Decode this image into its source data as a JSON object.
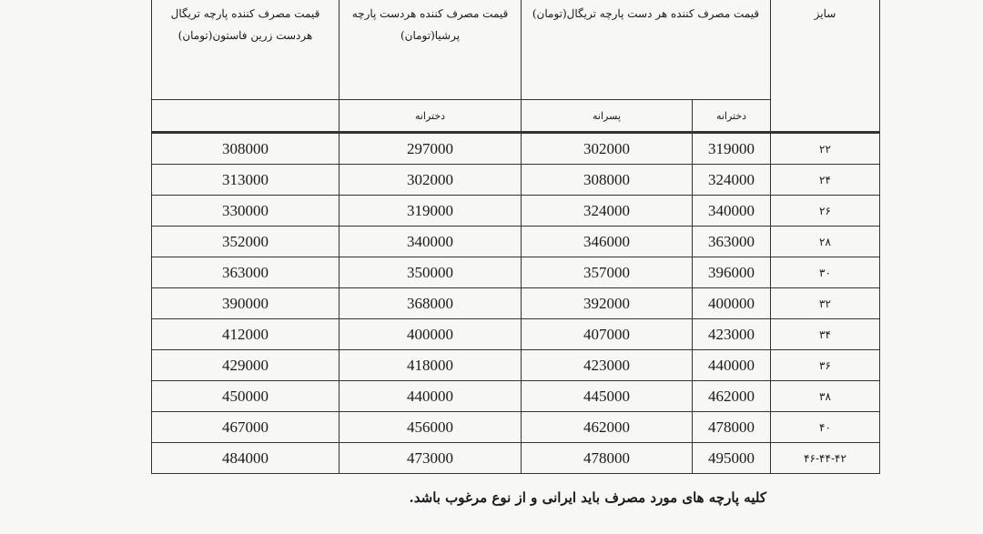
{
  "table": {
    "headers": {
      "size": "سایز",
      "trigal": "قیمت مصرف کننده هر دست پارچه تریگال(تومان)",
      "persia": "قیمت مصرف کننده هردست پارچه پرشیا(تومان)",
      "zarin": "قیمت مصرف کننده پارچه تریگال هردست زرین فاستون(تومان)"
    },
    "subheaders": {
      "trigal_girls": "دخترانه",
      "trigal_boys": "پسرانه",
      "persia_girls": "دخترانه",
      "zarin": ""
    },
    "rows": [
      {
        "size": "۲۲",
        "trigal_girls": "319000",
        "trigal_boys": "302000",
        "persia_girls": "297000",
        "zarin": "308000"
      },
      {
        "size": "۲۴",
        "trigal_girls": "324000",
        "trigal_boys": "308000",
        "persia_girls": "302000",
        "zarin": "313000"
      },
      {
        "size": "۲۶",
        "trigal_girls": "340000",
        "trigal_boys": "324000",
        "persia_girls": "319000",
        "zarin": "330000"
      },
      {
        "size": "۲۸",
        "trigal_girls": "363000",
        "trigal_boys": "346000",
        "persia_girls": "340000",
        "zarin": "352000"
      },
      {
        "size": "۳۰",
        "trigal_girls": "396000",
        "trigal_boys": "357000",
        "persia_girls": "350000",
        "zarin": "363000"
      },
      {
        "size": "۳۲",
        "trigal_girls": "400000",
        "trigal_boys": "392000",
        "persia_girls": "368000",
        "zarin": "390000"
      },
      {
        "size": "۳۴",
        "trigal_girls": "423000",
        "trigal_boys": "407000",
        "persia_girls": "400000",
        "zarin": "412000"
      },
      {
        "size": "۳۶",
        "trigal_girls": "440000",
        "trigal_boys": "423000",
        "persia_girls": "418000",
        "zarin": "429000"
      },
      {
        "size": "۳۸",
        "trigal_girls": "462000",
        "trigal_boys": "445000",
        "persia_girls": "440000",
        "zarin": "450000"
      },
      {
        "size": "۴۰",
        "trigal_girls": "478000",
        "trigal_boys": "462000",
        "persia_girls": "456000",
        "zarin": "467000"
      },
      {
        "size": "۴۶-۴۴-۴۲",
        "trigal_girls": "495000",
        "trigal_boys": "478000",
        "persia_girls": "473000",
        "zarin": "484000"
      }
    ]
  },
  "footer_note": "کلیه پارچه های مورد مصرف باید ایرانی و از نوع مرغوب باشد."
}
